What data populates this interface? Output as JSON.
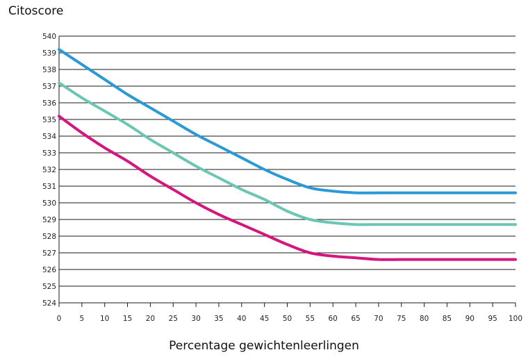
{
  "chart_data": {
    "type": "line",
    "ylabel": "Citoscore",
    "xlabel": "Percentage gewichtenleerlingen",
    "xlim": [
      0,
      100
    ],
    "ylim": [
      524,
      540
    ],
    "x_ticks": [
      0,
      5,
      10,
      15,
      20,
      25,
      30,
      35,
      40,
      45,
      50,
      55,
      60,
      65,
      70,
      75,
      80,
      85,
      90,
      95,
      100
    ],
    "y_ticks": [
      524,
      525,
      526,
      527,
      528,
      529,
      530,
      531,
      532,
      533,
      534,
      535,
      536,
      537,
      538,
      539,
      540
    ],
    "grid": "horizontal",
    "x": [
      0,
      5,
      10,
      15,
      20,
      25,
      30,
      35,
      40,
      45,
      50,
      55,
      60,
      65,
      70,
      75,
      80,
      85,
      90,
      95,
      100
    ],
    "series": [
      {
        "color": "#2a9ad6",
        "values": [
          539.2,
          538.3,
          537.4,
          536.5,
          535.7,
          534.9,
          534.1,
          533.4,
          532.7,
          532.0,
          531.4,
          530.9,
          530.7,
          530.6,
          530.6,
          530.6,
          530.6,
          530.6,
          530.6,
          530.6,
          530.6
        ]
      },
      {
        "color": "#6cc6b4",
        "values": [
          537.2,
          536.3,
          535.5,
          534.7,
          533.8,
          533.0,
          532.2,
          531.5,
          530.8,
          530.2,
          529.5,
          529.0,
          528.8,
          528.7,
          528.7,
          528.7,
          528.7,
          528.7,
          528.7,
          528.7,
          528.7
        ]
      },
      {
        "color": "#d4167e",
        "values": [
          535.2,
          534.2,
          533.3,
          532.5,
          531.6,
          530.8,
          530.0,
          529.3,
          528.7,
          528.1,
          527.5,
          527.0,
          526.8,
          526.7,
          526.6,
          526.6,
          526.6,
          526.6,
          526.6,
          526.6,
          526.6
        ]
      }
    ]
  }
}
